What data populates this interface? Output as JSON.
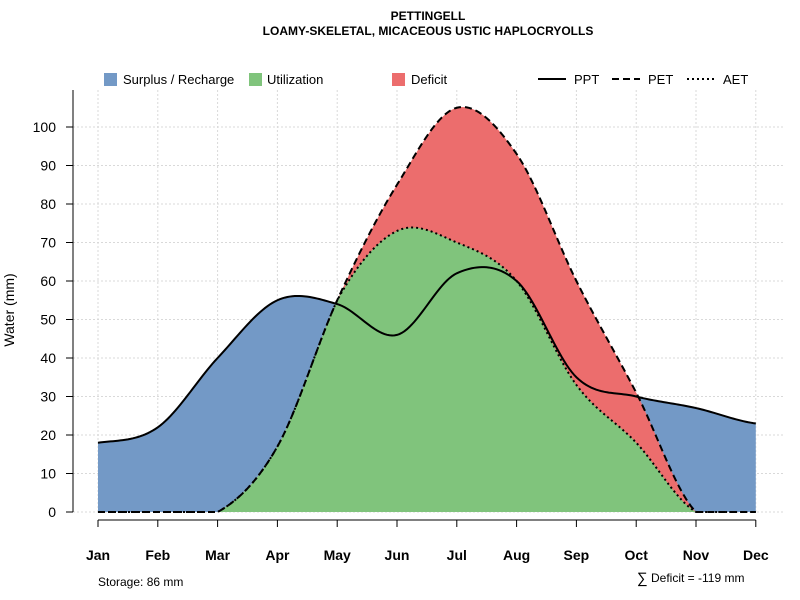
{
  "chart_data": {
    "type": "area",
    "title": "PETTINGELL",
    "subtitle": "LOAMY-SKELETAL, MICACEOUS USTIC HAPLOCRYOLLS",
    "xlabel": "",
    "ylabel": "Water (mm)",
    "categories": [
      "Jan",
      "Feb",
      "Mar",
      "Apr",
      "May",
      "Jun",
      "Jul",
      "Aug",
      "Sep",
      "Oct",
      "Nov",
      "Dec"
    ],
    "ylim": [
      0,
      108
    ],
    "yticks": [
      0,
      10,
      20,
      30,
      40,
      50,
      60,
      70,
      80,
      90,
      100
    ],
    "grid": true,
    "legend": {
      "areas": [
        {
          "name": "Surplus / Recharge",
          "color": "#7399c6"
        },
        {
          "name": "Utilization",
          "color": "#80c47c"
        },
        {
          "name": "Deficit",
          "color": "#ec6d6d"
        }
      ],
      "lines": [
        {
          "name": "PPT",
          "style": "solid"
        },
        {
          "name": "PET",
          "style": "dashed"
        },
        {
          "name": "AET",
          "style": "dotted"
        }
      ]
    },
    "series": [
      {
        "name": "PPT",
        "values": [
          18,
          22,
          40,
          55,
          54,
          46,
          62,
          60,
          35,
          30,
          27,
          23
        ]
      },
      {
        "name": "PET",
        "values": [
          0,
          0,
          0,
          17,
          55,
          85,
          105,
          93,
          60,
          31,
          0,
          0
        ]
      },
      {
        "name": "AET",
        "values": [
          0,
          0,
          0,
          17,
          55,
          73,
          70,
          60,
          33,
          18,
          0,
          0
        ]
      }
    ],
    "annotations": {
      "storage": "Storage: 86 mm",
      "deficit_symbol": "∑",
      "deficit": "Deficit = -119 mm"
    }
  }
}
